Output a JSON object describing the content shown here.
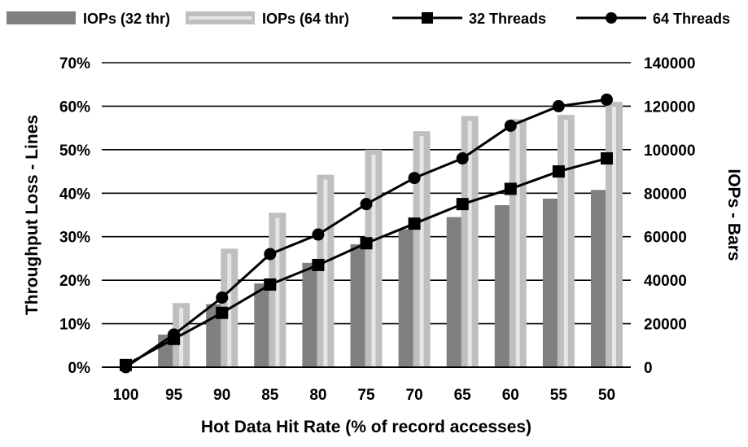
{
  "chart_data": {
    "type": "bar",
    "categories": [
      "100",
      "95",
      "90",
      "85",
      "80",
      "75",
      "70",
      "65",
      "60",
      "55",
      "50"
    ],
    "series": [
      {
        "name": "IOPs (32 thr)",
        "type": "bar",
        "axis": "right",
        "color": "#808080",
        "values": [
          0,
          15000,
          29000,
          38500,
          48000,
          56500,
          63500,
          69000,
          74500,
          77500,
          81500
        ]
      },
      {
        "name": "IOPs (64 thr)",
        "type": "bar",
        "axis": "right",
        "color": "#bfbfbf",
        "values": [
          0,
          29500,
          54500,
          71000,
          88500,
          100000,
          108500,
          115500,
          114000,
          116000,
          122000
        ]
      },
      {
        "name": "32 Threads",
        "type": "line",
        "axis": "left",
        "marker": "square",
        "color": "#000000",
        "values": [
          0.5,
          6.5,
          12.5,
          19,
          23.5,
          28.5,
          33,
          37.5,
          41,
          45,
          48
        ]
      },
      {
        "name": "64 Threads",
        "type": "line",
        "axis": "left",
        "marker": "circle",
        "color": "#000000",
        "values": [
          0,
          7.5,
          16,
          26,
          30.5,
          37.5,
          43.5,
          48,
          55.5,
          60,
          61.5
        ]
      }
    ],
    "y_left": {
      "label": "Throughput Loss - Lines",
      "min": 0,
      "max": 70,
      "ticks": [
        "0%",
        "10%",
        "20%",
        "30%",
        "40%",
        "50%",
        "60%",
        "70%"
      ]
    },
    "y_right": {
      "label": "IOPs - Bars",
      "min": 0,
      "max": 140000,
      "ticks": [
        "0",
        "20000",
        "40000",
        "60000",
        "80000",
        "100000",
        "120000",
        "140000"
      ]
    },
    "xlabel": "Hot Data Hit Rate (% of record accesses)",
    "grid": true,
    "legend_position": "top"
  }
}
